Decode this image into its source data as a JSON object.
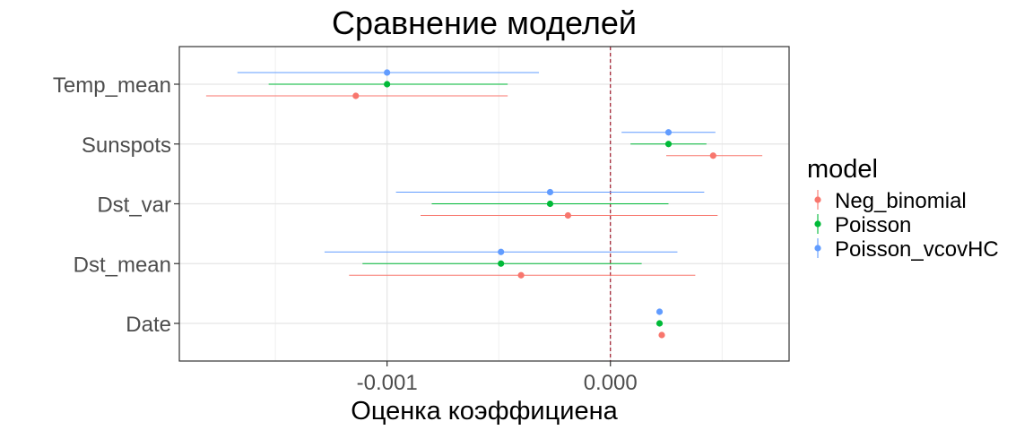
{
  "chart_data": {
    "type": "scatter",
    "title": "Сравнение моделей",
    "xlabel": "Оценка коэффициена",
    "ylabel": "",
    "categories": [
      "Temp_mean",
      "Sunspots",
      "Dst_var",
      "Dst_mean",
      "Date"
    ],
    "xlim": [
      -0.00193,
      0.0008
    ],
    "xticks": [
      -0.001,
      0.0
    ],
    "xtick_labels": [
      "-0.001",
      "0.000"
    ],
    "grid": true,
    "reference_line": {
      "x": 0.0,
      "style": "dashed",
      "color": "#a0182a"
    },
    "legend": {
      "title": "model",
      "position": "right",
      "entries": [
        "Neg_binomial",
        "Poisson",
        "Poisson_vcovHC"
      ]
    },
    "series": [
      {
        "name": "Neg_binomial",
        "color": "#f8766d",
        "points": [
          {
            "category": "Temp_mean",
            "estimate": -0.00114,
            "low": -0.00181,
            "high": -0.00046
          },
          {
            "category": "Sunspots",
            "estimate": 0.00046,
            "low": 0.00025,
            "high": 0.00068
          },
          {
            "category": "Dst_var",
            "estimate": -0.00019,
            "low": -0.00085,
            "high": 0.00048
          },
          {
            "category": "Dst_mean",
            "estimate": -0.0004,
            "low": -0.00117,
            "high": 0.00038
          },
          {
            "category": "Date",
            "estimate": 0.00023,
            "low": 0.00023,
            "high": 0.00023
          }
        ]
      },
      {
        "name": "Poisson",
        "color": "#00ba38",
        "points": [
          {
            "category": "Temp_mean",
            "estimate": -0.001,
            "low": -0.00153,
            "high": -0.00046
          },
          {
            "category": "Sunspots",
            "estimate": 0.00026,
            "low": 9e-05,
            "high": 0.00043
          },
          {
            "category": "Dst_var",
            "estimate": -0.00027,
            "low": -0.0008,
            "high": 0.00026
          },
          {
            "category": "Dst_mean",
            "estimate": -0.00049,
            "low": -0.00111,
            "high": 0.00014
          },
          {
            "category": "Date",
            "estimate": 0.00022,
            "low": 0.00022,
            "high": 0.00022
          }
        ]
      },
      {
        "name": "Poisson_vcovHC",
        "color": "#619cff",
        "points": [
          {
            "category": "Temp_mean",
            "estimate": -0.001,
            "low": -0.00167,
            "high": -0.00032
          },
          {
            "category": "Sunspots",
            "estimate": 0.00026,
            "low": 5e-05,
            "high": 0.00047
          },
          {
            "category": "Dst_var",
            "estimate": -0.00027,
            "low": -0.00096,
            "high": 0.00042
          },
          {
            "category": "Dst_mean",
            "estimate": -0.00049,
            "low": -0.00128,
            "high": 0.0003
          },
          {
            "category": "Date",
            "estimate": 0.00022,
            "low": 0.00022,
            "high": 0.00022
          }
        ]
      }
    ]
  }
}
